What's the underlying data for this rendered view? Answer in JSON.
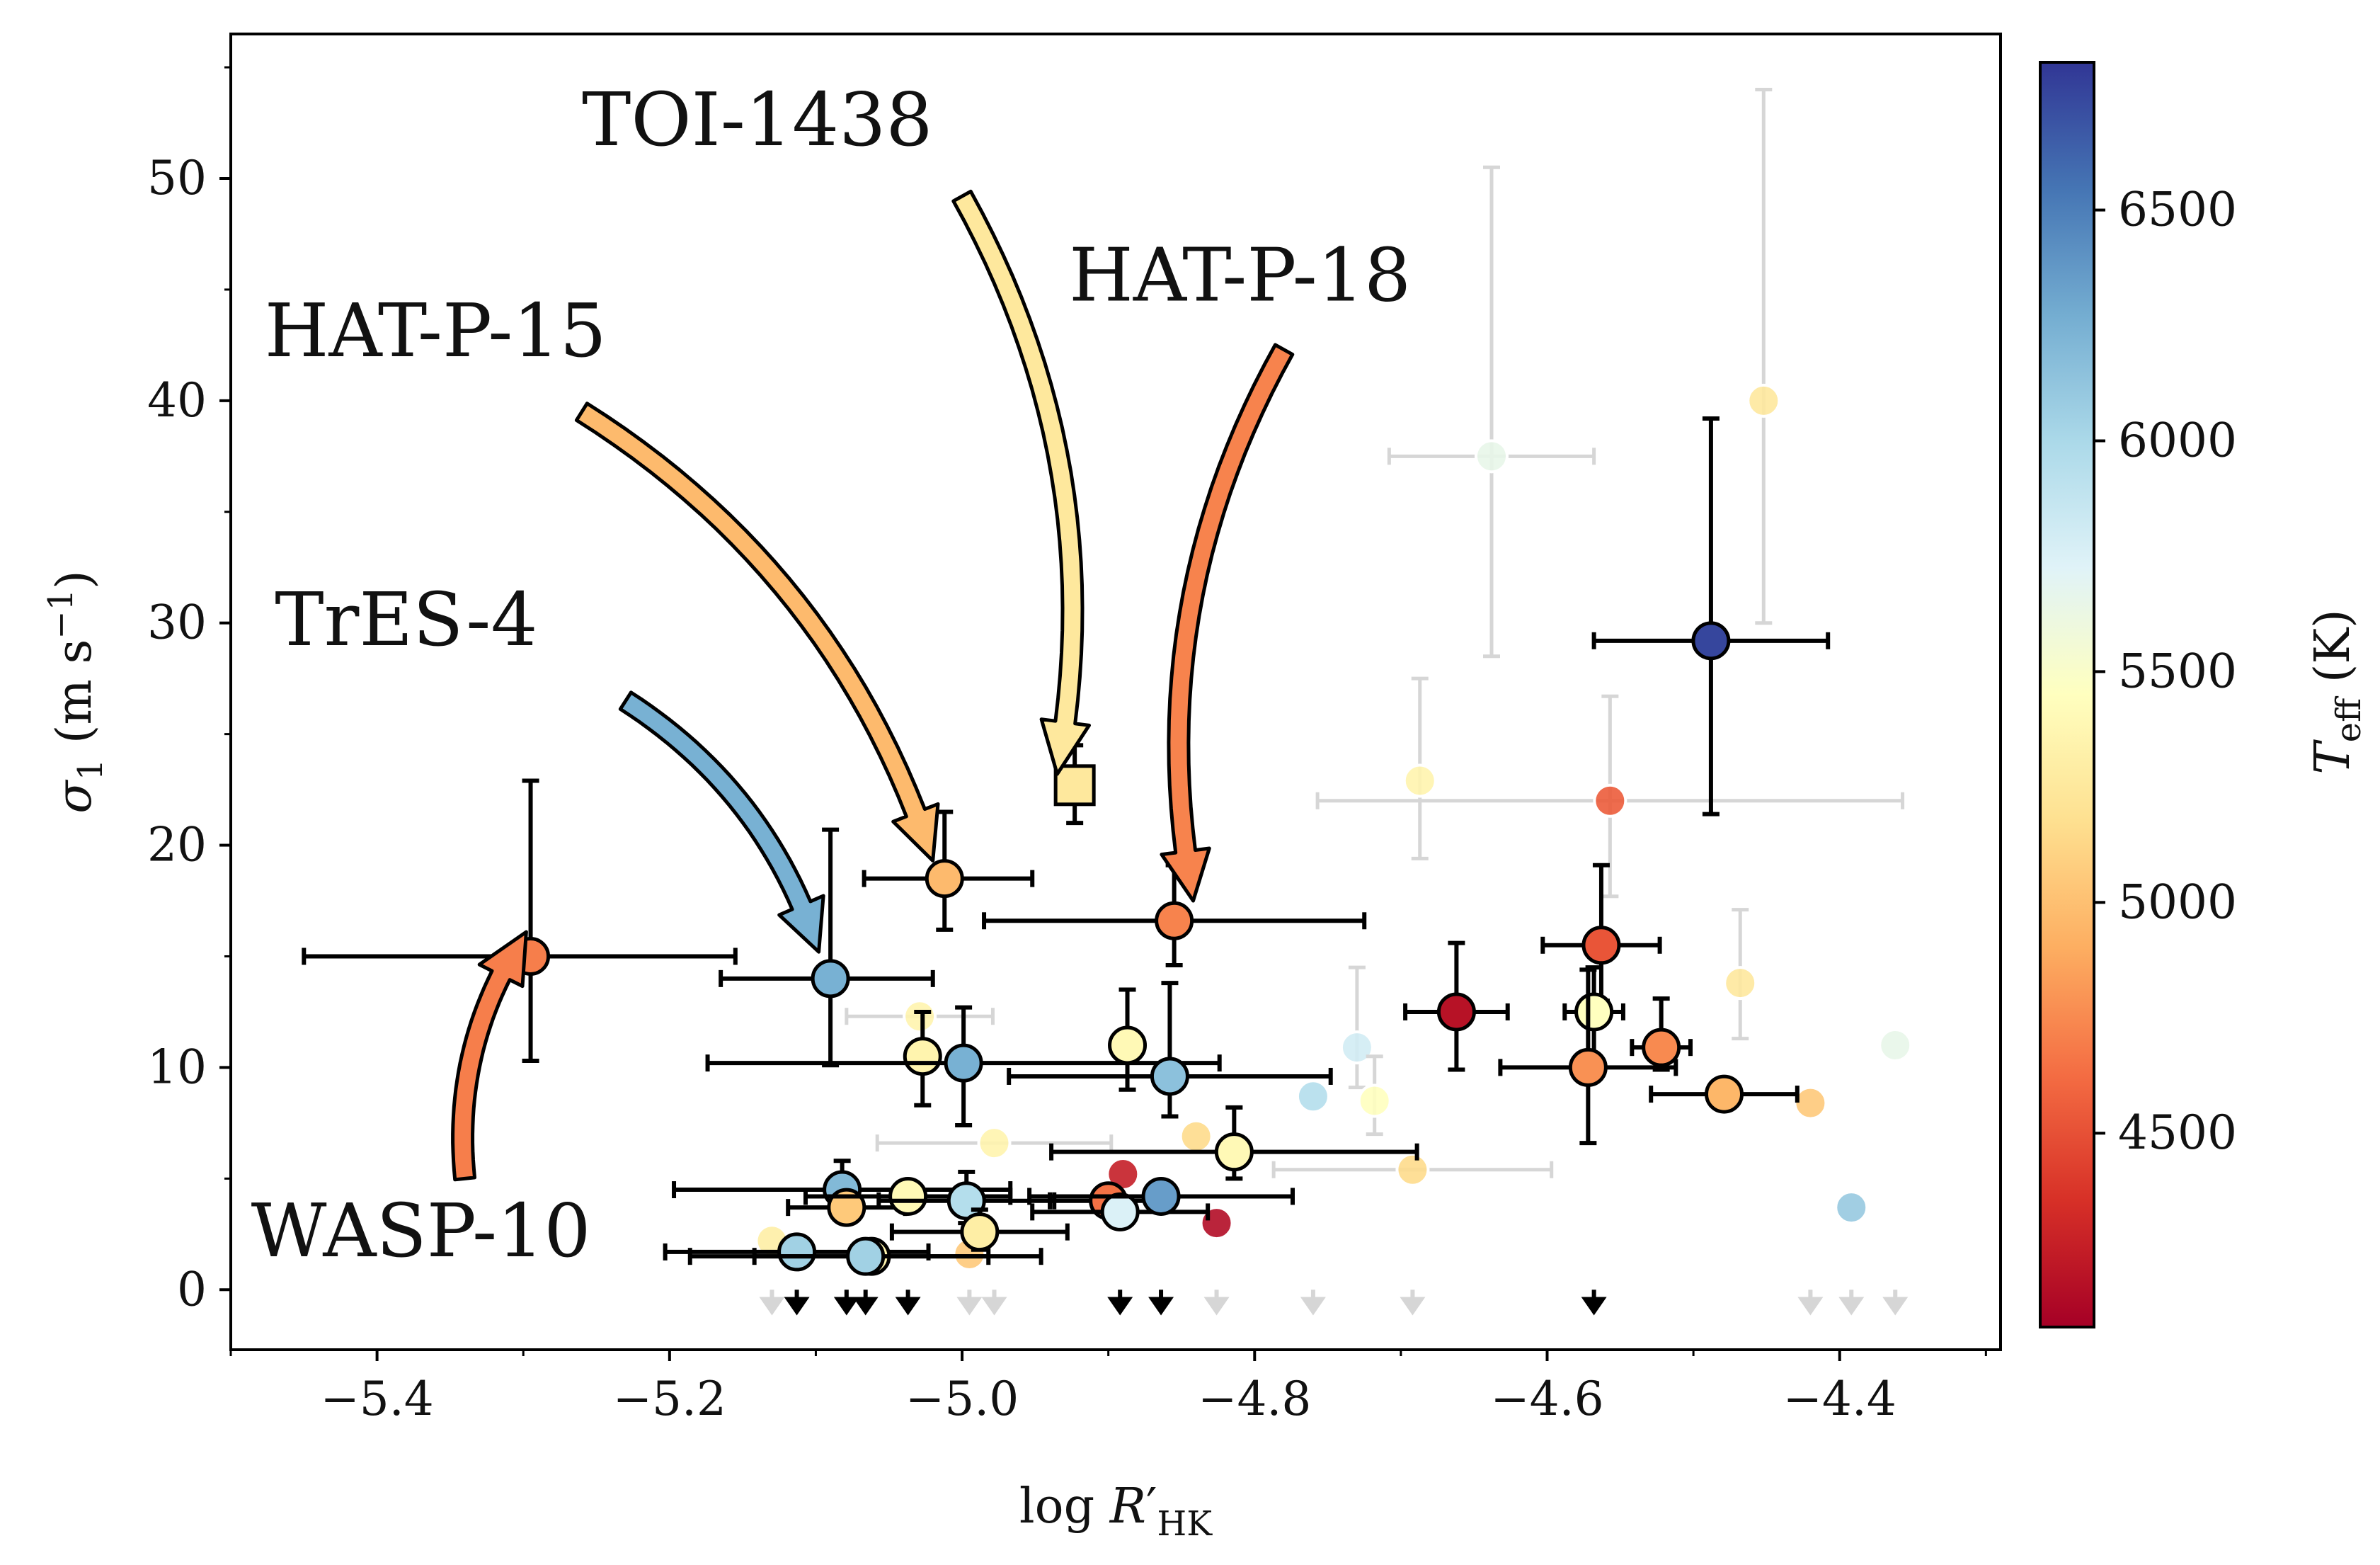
{
  "chart_data": {
    "type": "scatter",
    "xlabel": "log R′HK",
    "ylabel": "σ1 (m s⁻¹)",
    "xlim": [
      -5.5,
      -4.29
    ],
    "ylim": [
      -2.7,
      56.5
    ],
    "xticks": [
      -5.4,
      -5.2,
      -5.0,
      -4.8,
      -4.6,
      -4.4
    ],
    "xtick_labels": [
      "−5.4",
      "−5.2",
      "−5.0",
      "−4.8",
      "−4.6",
      "−4.4"
    ],
    "yticks": [
      0,
      10,
      20,
      30,
      40,
      50
    ],
    "ytick_labels": [
      "0",
      "10",
      "20",
      "30",
      "40",
      "50"
    ],
    "grid": false,
    "colorbar": {
      "label": "Teff (K)",
      "range": [
        4080,
        6820
      ],
      "ticks": [
        4500,
        5000,
        5500,
        6000,
        6500
      ],
      "tick_labels": [
        "4500",
        "5000",
        "5500",
        "6000",
        "6500"
      ],
      "colormap": "RdYlBu",
      "stops": [
        "#a50026",
        "#d73027",
        "#f46d43",
        "#fdae61",
        "#fee090",
        "#ffffbf",
        "#e0f3f8",
        "#abd9e9",
        "#74add1",
        "#4575b4",
        "#313695"
      ]
    },
    "points_highlighted": [
      {
        "x": -5.295,
        "y": 15.0,
        "xerr": [
          0.155,
          0.14
        ],
        "yerr": [
          4.7,
          7.9
        ],
        "teff": 4700,
        "marker": "circle"
      },
      {
        "x": -5.09,
        "y": 14.0,
        "xerr": [
          0.075,
          0.07
        ],
        "yerr": [
          3.9,
          6.7
        ],
        "teff": 6250,
        "marker": "circle"
      },
      {
        "x": -5.012,
        "y": 18.5,
        "xerr": [
          0.055,
          0.06
        ],
        "yerr": [
          2.3,
          3.0
        ],
        "teff": 4970,
        "marker": "circle"
      },
      {
        "x": -4.923,
        "y": 22.7,
        "xerr": [
          0,
          0
        ],
        "yerr": [
          1.7,
          1.8
        ],
        "teff": 5250,
        "marker": "square"
      },
      {
        "x": -4.855,
        "y": 16.6,
        "xerr": [
          0.13,
          0.13
        ],
        "yerr": [
          2.0,
          2.5
        ],
        "teff": 4720,
        "marker": "circle"
      },
      {
        "x": -4.488,
        "y": 29.2,
        "xerr": [
          0.08,
          0.08
        ],
        "yerr": [
          7.8,
          10.0
        ],
        "teff": 6750,
        "marker": "circle"
      },
      {
        "x": -4.662,
        "y": 12.5,
        "xerr": [
          0.035,
          0.035
        ],
        "yerr": [
          2.6,
          3.1
        ],
        "teff": 4180,
        "marker": "circle"
      },
      {
        "x": -4.563,
        "y": 15.5,
        "xerr": [
          0.04,
          0.04
        ],
        "yerr": [
          2.5,
          3.6
        ],
        "teff": 4520,
        "marker": "circle"
      },
      {
        "x": -4.568,
        "y": 12.5,
        "xerr": [
          0.02,
          0.02
        ],
        "yerr": [
          2.0,
          2.0
        ],
        "teff": 5450,
        "marker": "circle"
      },
      {
        "x": -4.572,
        "y": 10.0,
        "xerr": [
          0.06,
          0.06
        ],
        "yerr": [
          3.4,
          4.4
        ],
        "teff": 4780,
        "marker": "circle"
      },
      {
        "x": -4.522,
        "y": 10.9,
        "xerr": [
          0.02,
          0.02
        ],
        "yerr": [
          1.0,
          2.2
        ],
        "teff": 4750,
        "marker": "circle"
      },
      {
        "x": -4.479,
        "y": 8.8,
        "xerr": [
          0.05,
          0.05
        ],
        "yerr": [
          0.0,
          0.0
        ],
        "teff": 4950,
        "marker": "circle"
      },
      {
        "x": -5.027,
        "y": 10.5,
        "xerr": [
          0.0,
          0.0
        ],
        "yerr": [
          2.2,
          2.0
        ],
        "teff": 5350,
        "marker": "circle"
      },
      {
        "x": -4.999,
        "y": 10.2,
        "xerr": [
          0.175,
          0.175
        ],
        "yerr": [
          2.8,
          2.5
        ],
        "teff": 6250,
        "marker": "circle"
      },
      {
        "x": -4.887,
        "y": 11.0,
        "xerr": [
          0.0,
          0.0
        ],
        "yerr": [
          2.0,
          2.5
        ],
        "teff": 5400,
        "marker": "circle"
      },
      {
        "x": -4.858,
        "y": 9.6,
        "xerr": [
          0.11,
          0.11
        ],
        "yerr": [
          1.8,
          4.2
        ],
        "teff": 6150,
        "marker": "circle"
      },
      {
        "x": -4.814,
        "y": 6.2,
        "xerr": [
          0.125,
          0.125
        ],
        "yerr": [
          1.2,
          2.0
        ],
        "teff": 5400,
        "marker": "circle"
      },
      {
        "x": -5.082,
        "y": 4.5,
        "xerr": [
          0.115,
          0.115
        ],
        "yerr": [
          1.0,
          1.3
        ],
        "teff": 6200,
        "marker": "circle"
      },
      {
        "x": -5.079,
        "y": 3.7,
        "xerr": [
          0.04,
          0.04
        ],
        "yerr": [
          0.5,
          0.5
        ],
        "teff": 5050,
        "marker": "circle"
      },
      {
        "x": -5.037,
        "y": 4.2,
        "xerr": [
          0.07,
          0.07
        ],
        "yerr": [
          0.5,
          0.5
        ],
        "teff": 5400,
        "marker": "circle"
      },
      {
        "x": -4.997,
        "y": 4.0,
        "xerr": [
          0.06,
          0.06
        ],
        "yerr": [
          1.0,
          1.3
        ],
        "teff": 5950,
        "marker": "circle"
      },
      {
        "x": -4.988,
        "y": 2.6,
        "xerr": [
          0.06,
          0.06
        ],
        "yerr": [
          0.8,
          1.0
        ],
        "teff": 5300,
        "marker": "circle"
      },
      {
        "x": -4.9,
        "y": 4.0,
        "xerr": [
          0.04,
          0.04
        ],
        "yerr": [
          0.0,
          0.0
        ],
        "teff": 4650,
        "marker": "circle"
      },
      {
        "x": -4.892,
        "y": 3.5,
        "xerr": [
          0.06,
          0.06
        ],
        "yerr": [
          0.0,
          0.0
        ],
        "teff": 5750,
        "marker": "circle"
      },
      {
        "x": -4.864,
        "y": 4.2,
        "xerr": [
          0.09,
          0.09
        ],
        "yerr": [
          0.5,
          0.5
        ],
        "teff": 6350,
        "marker": "circle"
      },
      {
        "x": -5.113,
        "y": 1.7,
        "xerr": [
          0.09,
          0.09
        ],
        "yerr": [
          0.0,
          0.0
        ],
        "teff": 6050,
        "marker": "circle"
      },
      {
        "x": -5.062,
        "y": 1.5,
        "xerr": [
          0.08,
          0.08
        ],
        "yerr": [
          0.0,
          0.0
        ],
        "teff": 5350,
        "marker": "circle"
      },
      {
        "x": -5.066,
        "y": 1.5,
        "xerr": [
          0.12,
          0.12
        ],
        "yerr": [
          0.0,
          0.0
        ],
        "teff": 6050,
        "marker": "circle"
      }
    ],
    "upper_limits": [
      -5.113,
      -5.079,
      -5.066,
      -5.037,
      -4.892,
      -4.864,
      -4.568
    ],
    "points_faded": [
      {
        "x": -4.452,
        "y": 40.0,
        "yerr": [
          10.0,
          14.0
        ],
        "teff": 5250
      },
      {
        "x": -4.638,
        "y": 37.5,
        "xerr": [
          0.07,
          0.07
        ],
        "yerr": [
          9.0,
          13.0
        ],
        "teff": 5650
      },
      {
        "x": -4.687,
        "y": 22.9,
        "xerr": [
          0.0,
          0.0
        ],
        "yerr": [
          3.5,
          4.6
        ],
        "teff": 5350
      },
      {
        "x": -4.557,
        "y": 22.0,
        "xerr": [
          0.2,
          0.2
        ],
        "yerr": [
          4.3,
          4.7
        ],
        "teff": 4550
      },
      {
        "x": -4.468,
        "y": 13.8,
        "xerr": [
          0.0,
          0.0
        ],
        "yerr": [
          2.5,
          3.3
        ],
        "teff": 5250
      },
      {
        "x": -4.362,
        "y": 11.0,
        "xerr": [
          0.0,
          0.0
        ],
        "yerr": [
          0.0,
          0.0
        ],
        "teff": 5650
      },
      {
        "x": -4.73,
        "y": 10.9,
        "xerr": [
          0.0,
          0.0
        ],
        "yerr": [
          1.8,
          3.6
        ],
        "teff": 5800
      },
      {
        "x": -4.718,
        "y": 8.5,
        "xerr": [
          0.0,
          0.0
        ],
        "yerr": [
          1.5,
          2.0
        ],
        "teff": 5450
      },
      {
        "x": -4.76,
        "y": 8.7,
        "xerr": [
          0.0,
          0.0
        ],
        "yerr": [
          0.0,
          0.0
        ],
        "teff": 5950
      },
      {
        "x": -4.42,
        "y": 8.4,
        "xerr": [
          0.0,
          0.0
        ],
        "yerr": [
          0.0,
          0.0
        ],
        "teff": 5050
      },
      {
        "x": -4.692,
        "y": 5.4,
        "xerr": [
          0.095,
          0.095
        ],
        "yerr": [
          0.0,
          0.0
        ],
        "teff": 5150
      },
      {
        "x": -4.392,
        "y": 3.7,
        "xerr": [
          0.0,
          0.0
        ],
        "yerr": [
          0.0,
          0.0
        ],
        "teff": 6100
      },
      {
        "x": -4.84,
        "y": 6.9,
        "xerr": [
          0.0,
          0.0
        ],
        "yerr": [
          0.0,
          0.0
        ],
        "teff": 5150
      },
      {
        "x": -4.978,
        "y": 6.6,
        "xerr": [
          0.08,
          0.08
        ],
        "yerr": [
          0.0,
          0.0
        ],
        "teff": 5350
      },
      {
        "x": -5.029,
        "y": 12.3,
        "xerr": [
          0.05,
          0.05
        ],
        "yerr": [
          0.0,
          0.0
        ],
        "teff": 5350
      },
      {
        "x": -4.89,
        "y": 5.2,
        "xerr": [
          0.0,
          0.0
        ],
        "yerr": [
          0.0,
          0.0
        ],
        "teff": 4250
      },
      {
        "x": -4.826,
        "y": 3.0,
        "xerr": [
          0.0,
          0.0
        ],
        "yerr": [
          0.0,
          0.0
        ],
        "teff": 4150
      },
      {
        "x": -5.13,
        "y": 2.2,
        "xerr": [
          0.0,
          0.0
        ],
        "yerr": [
          0.0,
          0.0
        ],
        "teff": 5300
      },
      {
        "x": -4.995,
        "y": 1.6,
        "xerr": [
          0.0,
          0.0
        ],
        "yerr": [
          0.0,
          0.0
        ],
        "teff": 5050
      }
    ],
    "faded_upper_limits": [
      -5.13,
      -4.995,
      -4.978,
      -4.826,
      -4.76,
      -4.692,
      -4.42,
      -4.392,
      -4.362
    ],
    "annotations": [
      {
        "text": "TOI-1438",
        "label_x": -5.14,
        "label_y": 51.5,
        "tail_x": -5.0,
        "tail_y": 49.2,
        "head_x": -4.935,
        "head_y": 23.2,
        "teff": 5250
      },
      {
        "text": "HAT-P-18",
        "label_x": -4.81,
        "label_y": 44.5,
        "tail_x": -4.78,
        "tail_y": 42.3,
        "head_x": -4.842,
        "head_y": 17.5,
        "teff": 4720
      },
      {
        "text": "HAT-P-15",
        "label_x": -5.36,
        "label_y": 42.0,
        "tail_x": -5.26,
        "tail_y": 39.5,
        "head_x": -5.02,
        "head_y": 19.3,
        "teff": 4970
      },
      {
        "text": "TrES-4",
        "label_x": -5.38,
        "label_y": 29.0,
        "tail_x": -5.23,
        "tail_y": 26.5,
        "head_x": -5.098,
        "head_y": 15.2,
        "teff": 6250
      },
      {
        "text": "WASP-10",
        "label_x": -5.37,
        "label_y": 1.5,
        "tail_x": -5.34,
        "tail_y": 5.0,
        "head_x": -5.298,
        "head_y": 16.1,
        "teff": 4700
      }
    ]
  }
}
